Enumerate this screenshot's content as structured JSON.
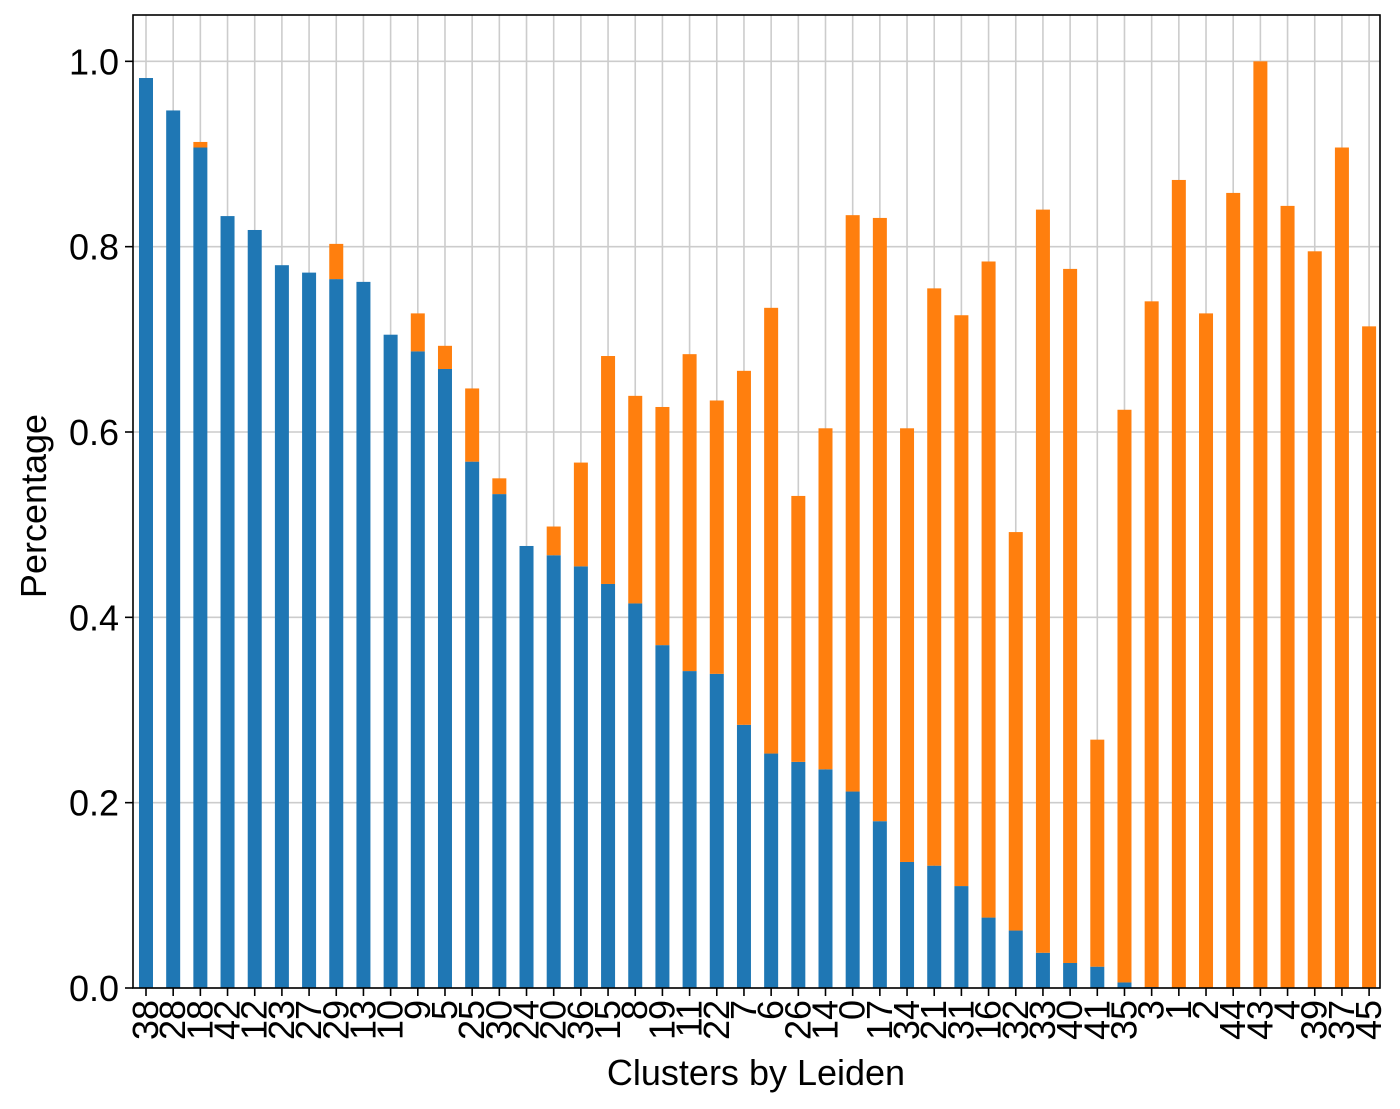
{
  "chart_data": {
    "type": "bar",
    "stacked": true,
    "title": "",
    "xlabel": "Clusters by Leiden",
    "ylabel": "Percentage",
    "ylim": [
      0.0,
      1.05
    ],
    "yticks": [
      0.0,
      0.2,
      0.4,
      0.6,
      0.8,
      1.0
    ],
    "ytick_labels": [
      "0.0",
      "0.2",
      "0.4",
      "0.6",
      "0.8",
      "1.0"
    ],
    "grid": true,
    "legend": "none",
    "categories": [
      "38",
      "28",
      "18",
      "42",
      "12",
      "23",
      "27",
      "29",
      "13",
      "10",
      "9",
      "5",
      "25",
      "30",
      "24",
      "20",
      "36",
      "15",
      "8",
      "19",
      "11",
      "22",
      "7",
      "6",
      "26",
      "14",
      "0",
      "17",
      "34",
      "21",
      "31",
      "16",
      "32",
      "33",
      "40",
      "41",
      "35",
      "3",
      "1",
      "2",
      "44",
      "43",
      "4",
      "39",
      "37",
      "45"
    ],
    "series": [
      {
        "color": "#1f77b4",
        "values": [
          0.982,
          0.947,
          0.907,
          0.833,
          0.818,
          0.78,
          0.772,
          0.765,
          0.762,
          0.705,
          0.687,
          0.668,
          0.568,
          0.533,
          0.477,
          0.467,
          0.455,
          0.436,
          0.415,
          0.37,
          0.342,
          0.339,
          0.284,
          0.253,
          0.244,
          0.236,
          0.212,
          0.18,
          0.136,
          0.132,
          0.11,
          0.076,
          0.062,
          0.038,
          0.027,
          0.023,
          0.006,
          0.001,
          0.0,
          0.0,
          0.0,
          0.0,
          0.0,
          0.0,
          0.0,
          0.0
        ]
      },
      {
        "color": "#ff7f0e",
        "values": [
          0.0,
          0.0,
          0.006,
          0.0,
          0.0,
          0.0,
          0.0,
          0.038,
          0.0,
          0.0,
          0.041,
          0.025,
          0.079,
          0.017,
          0.0,
          0.031,
          0.112,
          0.246,
          0.224,
          0.257,
          0.342,
          0.295,
          0.382,
          0.481,
          0.287,
          0.368,
          0.622,
          0.651,
          0.468,
          0.623,
          0.616,
          0.708,
          0.43,
          0.802,
          0.749,
          0.245,
          0.618,
          0.74,
          0.872,
          0.728,
          0.858,
          1.0,
          0.844,
          0.795,
          0.907,
          0.714
        ]
      }
    ]
  }
}
